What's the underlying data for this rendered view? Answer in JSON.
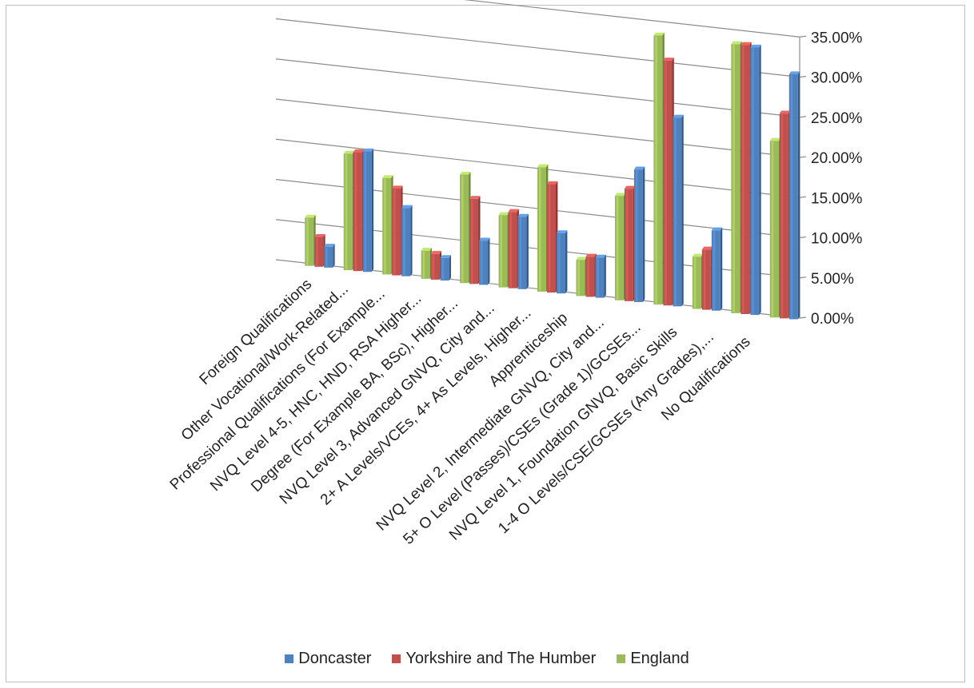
{
  "chart_data": {
    "type": "bar",
    "title": "",
    "xlabel": "",
    "ylabel": "",
    "ylim": [
      0,
      35
    ],
    "y_ticks": [
      "0.00%",
      "5.00%",
      "10.00%",
      "15.00%",
      "20.00%",
      "25.00%",
      "30.00%",
      "35.00%"
    ],
    "gridlines": true,
    "legend_position": "bottom",
    "categories": [
      "Foreign Qualifications",
      "Other Vocational/Work-Related...",
      "Professional Qualifications (For Example...",
      "NVQ Level 4-5, HNC, HND, RSA Higher...",
      "Degree (For Example BA, BSc), Higher...",
      "NVQ Level 3, Advanced GNVQ, City and...",
      "2+ A Levels/VCEs, 4+ As Levels, Higher...",
      "Apprenticeship",
      "NVQ Level 2, Intermediate GNVQ, City and...",
      "5+ O Level (Passes)/CSEs (Grade 1)/GCSEs...",
      "NVQ Level 1, Foundation GNVQ, Basic Skills",
      "1-4 O Levels/CSE/GCSEs (Any Grades),...",
      "No Qualifications"
    ],
    "series": [
      {
        "name": "England",
        "color": "#9bbb59",
        "values": [
          6.0,
          14.5,
          12.0,
          3.5,
          13.5,
          9.0,
          15.5,
          4.5,
          13.0,
          33.5,
          6.5,
          33.5,
          22.0
        ]
      },
      {
        "name": "Yorkshire and The Humber",
        "color": "#c0504d",
        "values": [
          3.7,
          14.8,
          10.8,
          3.2,
          10.6,
          9.5,
          13.5,
          5.0,
          14.0,
          30.5,
          7.5,
          33.5,
          25.5
        ]
      },
      {
        "name": "Doncaster",
        "color": "#4f81bd",
        "values": [
          2.6,
          15.0,
          8.5,
          2.8,
          5.5,
          9.0,
          7.5,
          5.0,
          16.5,
          23.5,
          10.0,
          33.3,
          30.5
        ]
      }
    ]
  },
  "legend": {
    "items": [
      {
        "label": "Doncaster",
        "color": "#4f81bd"
      },
      {
        "label": "Yorkshire and The Humber",
        "color": "#c0504d"
      },
      {
        "label": "England",
        "color": "#9bbb59"
      }
    ]
  }
}
